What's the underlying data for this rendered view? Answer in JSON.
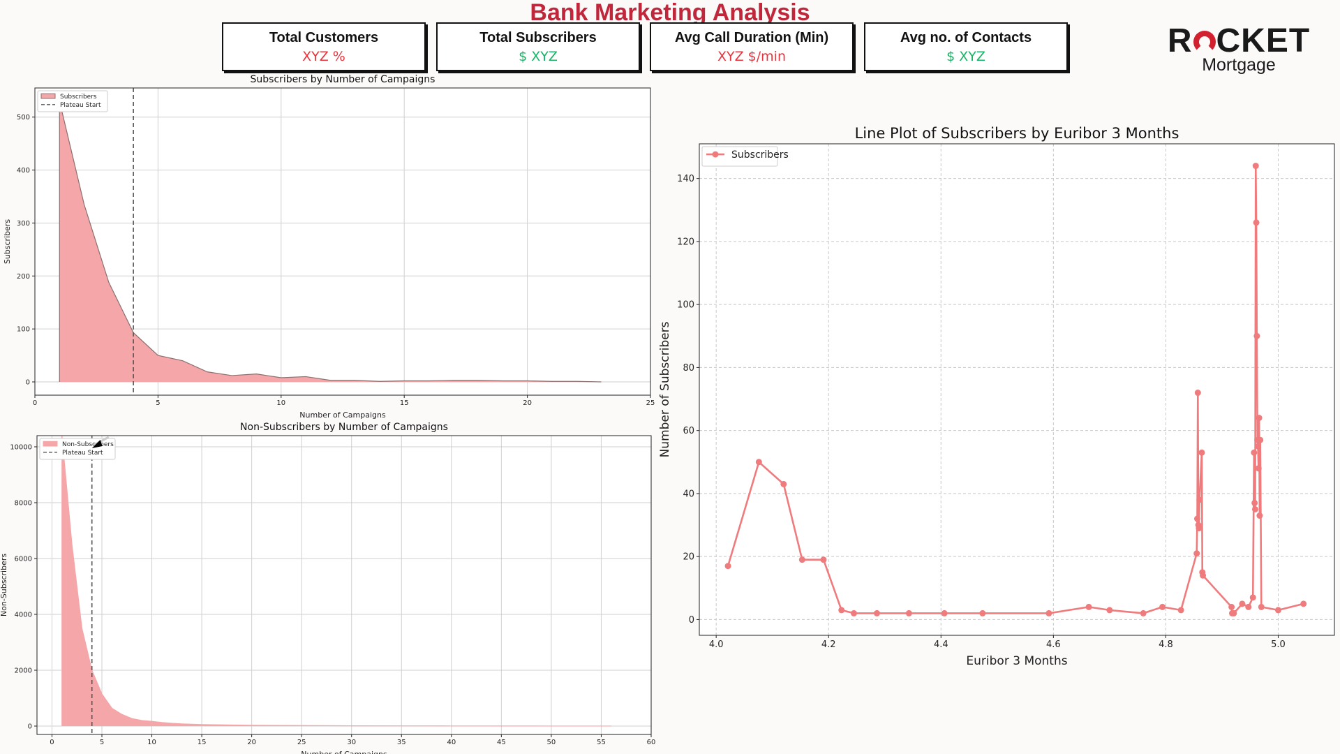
{
  "dashboard": {
    "title": "Bank Marketing Analysis",
    "kpis": [
      {
        "label": "Total Customers",
        "value": "XYZ %",
        "color": "#e8343c"
      },
      {
        "label": "Total Subscribers",
        "value": "$ XYZ",
        "color": "#18b465"
      },
      {
        "label": "Avg Call Duration (Min)",
        "value": "XYZ $/min",
        "color": "#e8343c"
      },
      {
        "label": "Avg no. of Contacts",
        "value": "$ XYZ",
        "color": "#18b465"
      }
    ],
    "logo": {
      "word_left": "R",
      "word_right": "CKET",
      "sub": "Mortgage",
      "brand_color": "#d3202f"
    }
  },
  "chart_data": [
    {
      "type": "area",
      "title": "Subscribers by Number of Campaigns",
      "xlabel": "Number of Campaigns",
      "ylabel": "Subscribers",
      "xlim": [
        0,
        25
      ],
      "ylim": [
        -25,
        555
      ],
      "xticks": [
        0,
        5,
        10,
        15,
        20,
        25
      ],
      "yticks": [
        0,
        100,
        200,
        300,
        400,
        500
      ],
      "grid": true,
      "legend_position": "top-left",
      "series": [
        {
          "name": "Subscribers",
          "x": [
            1,
            2,
            3,
            4,
            5,
            6,
            7,
            8,
            9,
            10,
            11,
            12,
            13,
            14,
            15,
            16,
            17,
            18,
            19,
            20,
            21,
            22,
            23
          ],
          "y": [
            530,
            335,
            188,
            93,
            50,
            40,
            19,
            12,
            15,
            8,
            10,
            3,
            3,
            1,
            2,
            2,
            3,
            3,
            2,
            2,
            1,
            1,
            0
          ]
        }
      ],
      "reference_line": {
        "name": "Plateau Start",
        "x": 4
      },
      "colors": {
        "fill": "#f4a6a8",
        "edge": "#8a7070"
      }
    },
    {
      "type": "area",
      "title": "Non-Subscribers by Number of Campaigns",
      "xlabel": "Number of Campaigns",
      "ylabel": "Non-Subscribers",
      "xlim": [
        -1.5,
        60
      ],
      "ylim": [
        -300,
        10400
      ],
      "xticks": [
        0,
        5,
        10,
        15,
        20,
        25,
        30,
        35,
        40,
        45,
        50,
        55,
        60
      ],
      "yticks": [
        0,
        2000,
        4000,
        6000,
        8000,
        10000
      ],
      "grid": true,
      "legend_position": "top-left",
      "series": [
        {
          "name": "Non-Subscribers",
          "x": [
            1,
            2,
            3,
            4,
            5,
            6,
            7,
            8,
            9,
            10,
            11,
            12,
            13,
            14,
            15,
            17,
            20,
            25,
            30,
            35,
            40,
            45,
            50,
            56
          ],
          "y": [
            10400,
            6500,
            3500,
            2000,
            1150,
            640,
            420,
            270,
            200,
            170,
            130,
            100,
            80,
            65,
            55,
            45,
            30,
            20,
            10,
            8,
            5,
            3,
            2,
            1
          ]
        }
      ],
      "reference_line": {
        "name": "Plateau Start",
        "x": 4
      },
      "colors": {
        "fill": "#f4a6a8",
        "edge": "#f4a6a8"
      }
    },
    {
      "type": "line",
      "title": "Line Plot of Subscribers by Euribor 3 Months",
      "xlabel": "Euribor 3 Months",
      "ylabel": "Number of Subscribers",
      "xlim": [
        3.97,
        5.1
      ],
      "ylim": [
        -5,
        151
      ],
      "xticks": [
        4.0,
        4.2,
        4.4,
        4.6,
        4.8,
        5.0
      ],
      "yticks": [
        0,
        20,
        40,
        60,
        80,
        100,
        120,
        140
      ],
      "grid": true,
      "legend_position": "top-left",
      "series": [
        {
          "name": "Subscribers",
          "color": "#ef7b7d",
          "x": [
            4.021,
            4.076,
            4.12,
            4.153,
            4.191,
            4.223,
            4.245,
            4.286,
            4.343,
            4.406,
            4.474,
            4.592,
            4.663,
            4.7,
            4.76,
            4.794,
            4.827,
            4.855,
            4.856,
            4.857,
            4.858,
            4.859,
            4.86,
            4.864,
            4.865,
            4.866,
            4.917,
            4.918,
            4.921,
            4.936,
            4.947,
            4.955,
            4.957,
            4.958,
            4.959,
            4.96,
            4.961,
            4.962,
            4.963,
            4.964,
            4.965,
            4.966,
            4.967,
            4.968,
            4.97,
            5.0,
            5.045
          ],
          "y": [
            17,
            50,
            43,
            19,
            19,
            3,
            2,
            2,
            2,
            2,
            2,
            2,
            4,
            3,
            2,
            4,
            3,
            21,
            32,
            72,
            30,
            29,
            38,
            53,
            15,
            14,
            4,
            2,
            2,
            5,
            4,
            7,
            53,
            37,
            35,
            144,
            126,
            90,
            57,
            55,
            48,
            64,
            33,
            57,
            4,
            3,
            5
          ]
        }
      ]
    }
  ]
}
